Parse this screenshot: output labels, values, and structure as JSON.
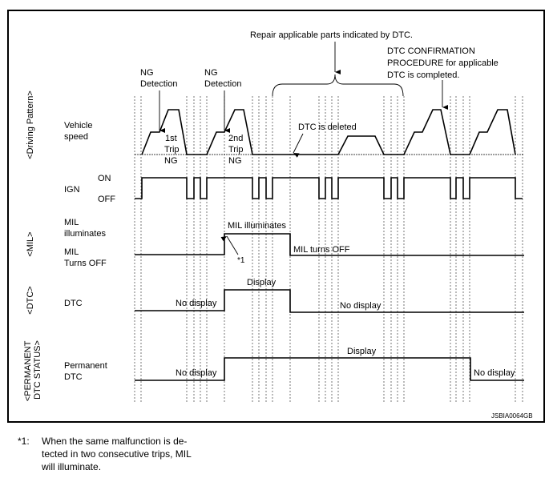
{
  "header": {
    "repair_note": "Repair applicable parts indicated by DTC.",
    "confirmation_note": [
      "DTC CONFIRMATION",
      "PROCEDURE for applicable",
      "DTC is completed."
    ]
  },
  "sections": {
    "driving_pattern": "<Driving Pattern>",
    "mil": "<MIL>",
    "dtc": "<DTC>",
    "permanent": [
      "<PERMANENT",
      "DTC STATUS>"
    ]
  },
  "row_labels": {
    "vehicle_speed": [
      "Vehicle",
      "speed"
    ],
    "ign": "IGN",
    "ign_on": "ON",
    "ign_off": "OFF",
    "mil_on": [
      "MIL",
      "illuminates"
    ],
    "mil_off": [
      "MIL",
      "Turns OFF"
    ],
    "dtc": "DTC",
    "permanent_dtc": [
      "Permanent",
      "DTC"
    ]
  },
  "annotations": {
    "ng_detection_1": [
      "NG",
      "Detection"
    ],
    "ng_detection_2": [
      "NG",
      "Detection"
    ],
    "trip1": [
      "1st",
      "Trip",
      "NG"
    ],
    "trip2": [
      "2nd",
      "Trip",
      "NG"
    ],
    "dtc_deleted": "DTC is deleted",
    "mil_illuminates": "MIL illuminates",
    "mil_turns_off": "MIL turns OFF",
    "note_ref": "*1",
    "dtc_display": "Display",
    "dtc_no_display_before": "No display",
    "dtc_no_display_after": "No display",
    "perm_display": "Display",
    "perm_no_display_before": "No display",
    "perm_no_display_after": "No display"
  },
  "figure_code": "JSBIA0064GB",
  "footnote": {
    "marker": "*1:",
    "lines": [
      "When the same malfunction is de-",
      "tected in two consecutive trips, MIL",
      "will illuminate."
    ]
  }
}
